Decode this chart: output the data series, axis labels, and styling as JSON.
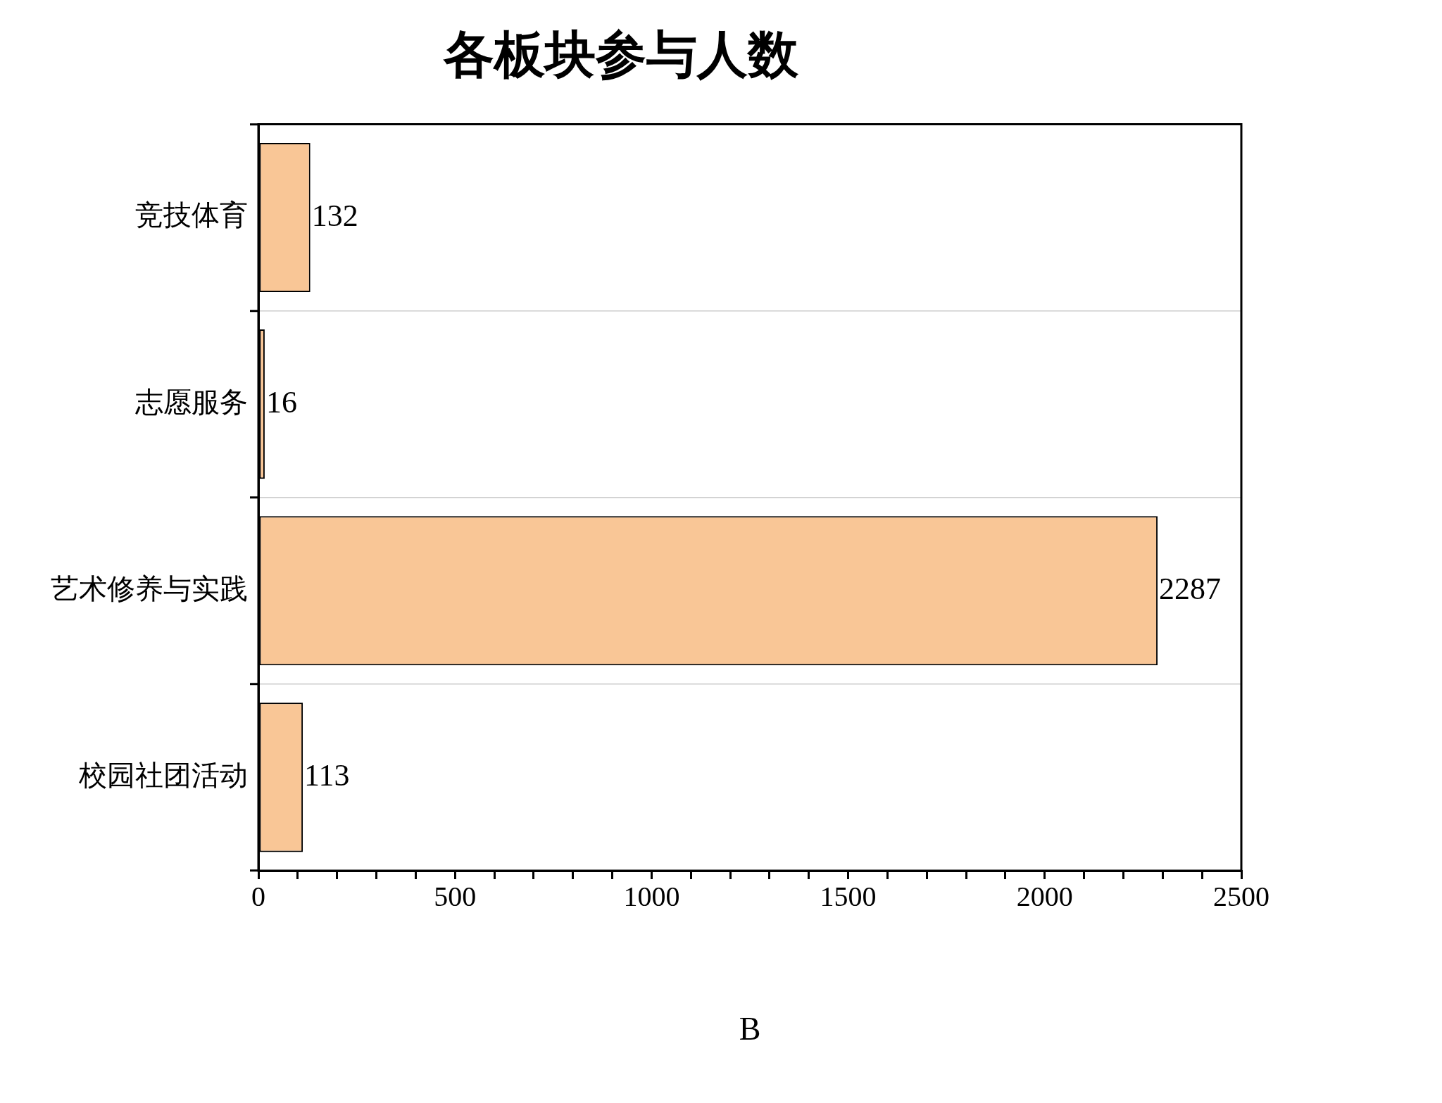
{
  "chart_data": {
    "type": "bar",
    "orientation": "horizontal",
    "title": "各板块参与人数",
    "xlabel": "B",
    "categories": [
      "竞技体育",
      "志愿服务",
      "艺术修养与实践",
      "校园社团活动"
    ],
    "values": [
      132,
      16,
      2287,
      113
    ],
    "color": "#f9c696",
    "xlim": [
      0,
      2500
    ],
    "xticks": [
      0,
      {
        "value": 100,
        "label": null
      },
      {
        "value": 200,
        "label": null
      },
      {
        "value": 300,
        "label": null
      },
      {
        "value": 400,
        "label": null
      },
      500,
      {
        "value": 600,
        "label": null
      },
      {
        "value": 700,
        "label": null
      },
      {
        "value": 800,
        "label": null
      },
      {
        "value": 900,
        "label": null
      },
      1000,
      {
        "value": 1100,
        "label": null
      },
      {
        "value": 1200,
        "label": null
      },
      {
        "value": 1300,
        "label": null
      },
      {
        "value": 1400,
        "label": null
      },
      1500,
      {
        "value": 1600,
        "label": null
      },
      {
        "value": 1700,
        "label": null
      },
      {
        "value": 1800,
        "label": null
      },
      {
        "value": 1900,
        "label": null
      },
      2000,
      {
        "value": 2100,
        "label": null
      },
      {
        "value": 2200,
        "label": null
      },
      {
        "value": 2300,
        "label": null
      },
      {
        "value": 2400,
        "label": null
      },
      2500
    ],
    "grid": "y",
    "data_labels": true
  }
}
